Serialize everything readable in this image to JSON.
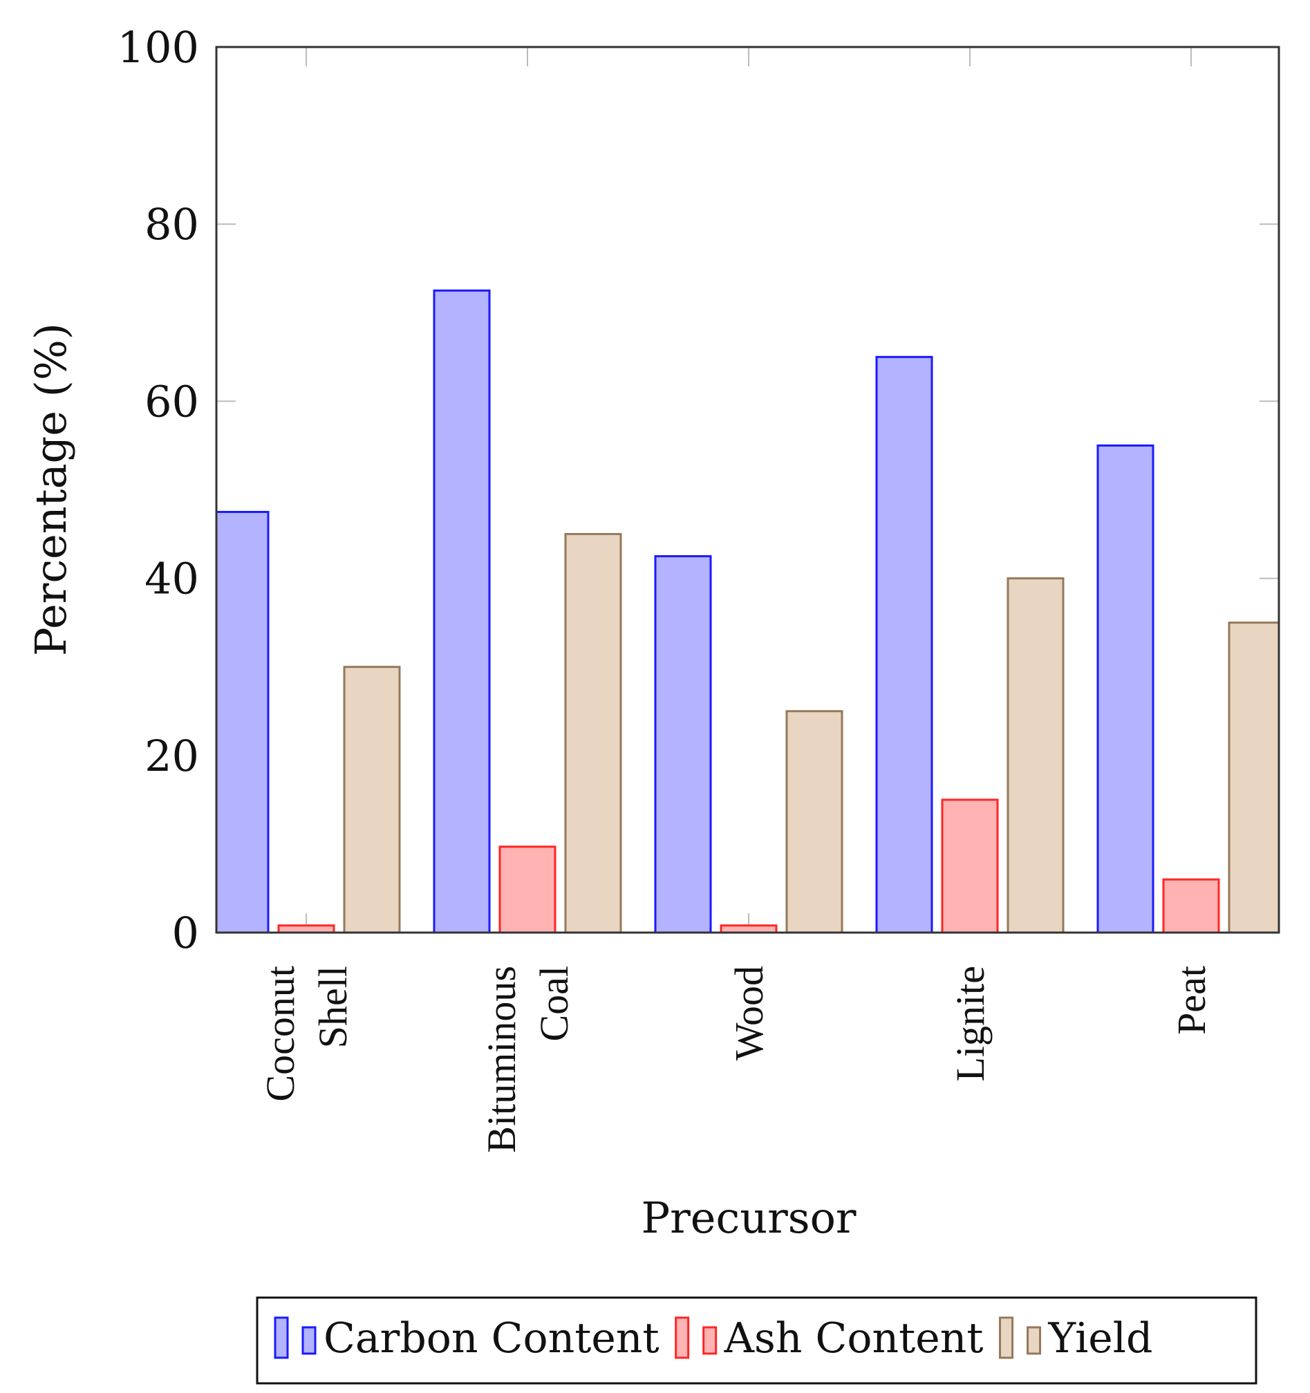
{
  "chart_data": {
    "type": "bar",
    "title": "",
    "xlabel": "Precursor",
    "ylabel": "Percentage (%)",
    "ylim": [
      0,
      100
    ],
    "yticks": [
      "0",
      "20",
      "40",
      "60",
      "80",
      "100"
    ],
    "ytick_values": [
      0,
      20,
      40,
      60,
      80,
      100
    ],
    "categories": [
      [
        "Coconut",
        "Shell"
      ],
      [
        "Bituminous",
        "Coal"
      ],
      [
        "Wood"
      ],
      [
        "Lignite"
      ],
      [
        "Peat"
      ]
    ],
    "series": [
      {
        "name": "Carbon Content",
        "values": [
          47.5,
          72.5,
          42.5,
          65,
          55
        ],
        "fill": "#b3b3ff",
        "stroke": "#1a1aff"
      },
      {
        "name": "Ash Content",
        "values": [
          0.8,
          9.7,
          0.8,
          15,
          6
        ],
        "fill": "#ffb3b3",
        "stroke": "#ff2626"
      },
      {
        "name": "Yield",
        "values": [
          30,
          45,
          25,
          40,
          35
        ],
        "fill": "#e8d6c3",
        "stroke": "#96785a"
      }
    ],
    "legend_position": "bottom",
    "grid": false
  }
}
